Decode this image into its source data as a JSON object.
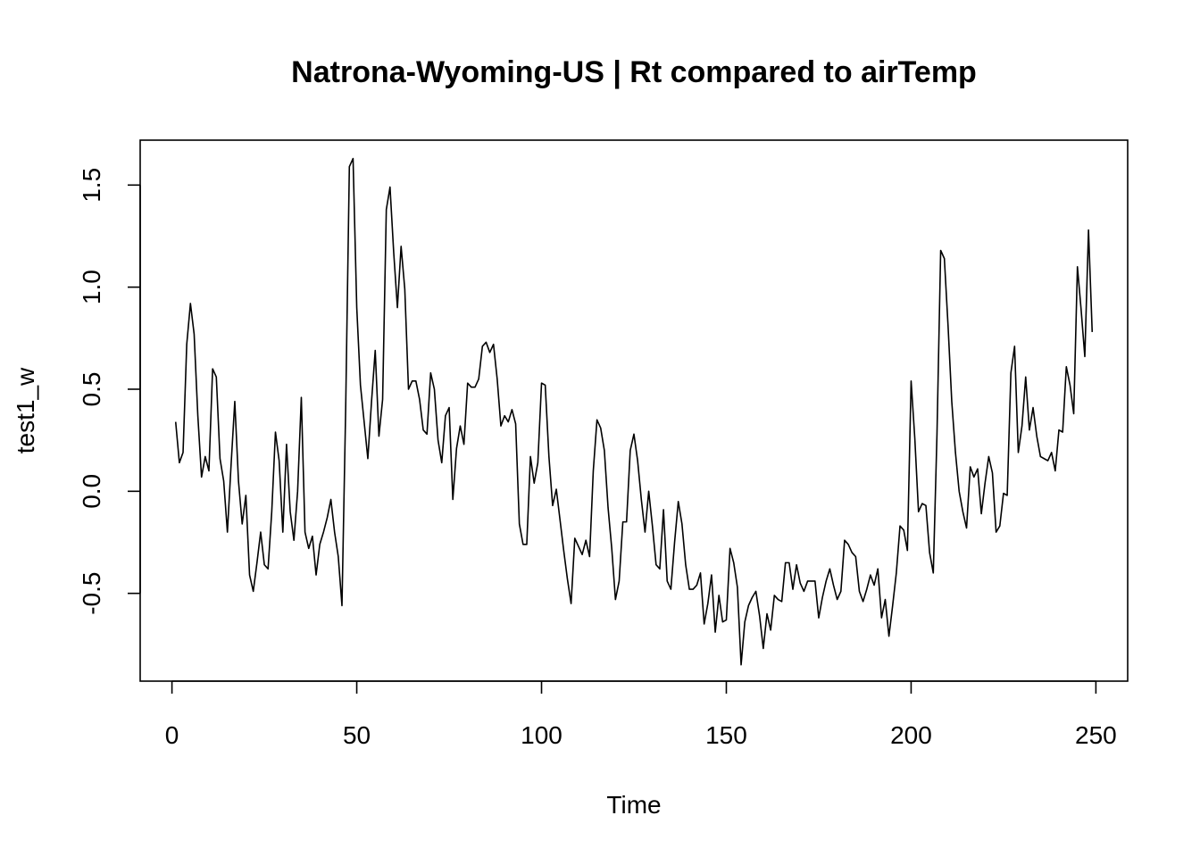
{
  "chart_data": {
    "type": "line",
    "title": "Natrona-Wyoming-US | Rt compared to airTemp",
    "xlabel": "Time",
    "ylabel": "test1_w",
    "xlim": [
      -8.6,
      258.6
    ],
    "ylim": [
      -0.93,
      1.72
    ],
    "xticks": [
      0,
      50,
      100,
      150,
      200,
      250
    ],
    "yticks": [
      -0.5,
      0.0,
      0.5,
      1.0,
      1.5
    ],
    "xtick_labels": [
      "0",
      "50",
      "100",
      "150",
      "200",
      "250"
    ],
    "ytick_labels": [
      "-0.5",
      "0.0",
      "0.5",
      "1.0",
      "1.5"
    ],
    "grid": false,
    "legend": "none",
    "series": [
      {
        "x_start": 1,
        "values": [
          0.34,
          0.14,
          0.19,
          0.72,
          0.92,
          0.77,
          0.37,
          0.07,
          0.17,
          0.1,
          0.6,
          0.56,
          0.16,
          0.05,
          -0.2,
          0.13,
          0.44,
          0.05,
          -0.16,
          -0.02,
          -0.41,
          -0.49,
          -0.35,
          -0.2,
          -0.36,
          -0.38,
          -0.1,
          0.29,
          0.15,
          -0.2,
          0.23,
          -0.1,
          -0.24,
          0.0,
          0.46,
          -0.2,
          -0.28,
          -0.22,
          -0.41,
          -0.26,
          -0.2,
          -0.13,
          -0.04,
          -0.2,
          -0.32,
          -0.56,
          0.4,
          1.59,
          1.63,
          0.9,
          0.52,
          0.34,
          0.16,
          0.44,
          0.69,
          0.27,
          0.45,
          1.38,
          1.49,
          1.17,
          0.9,
          1.2,
          0.99,
          0.5,
          0.54,
          0.54,
          0.45,
          0.3,
          0.28,
          0.58,
          0.5,
          0.25,
          0.14,
          0.37,
          0.41,
          -0.04,
          0.21,
          0.32,
          0.23,
          0.53,
          0.51,
          0.51,
          0.55,
          0.71,
          0.73,
          0.68,
          0.72,
          0.55,
          0.32,
          0.37,
          0.34,
          0.4,
          0.33,
          -0.16,
          -0.26,
          -0.26,
          0.17,
          0.04,
          0.14,
          0.53,
          0.52,
          0.17,
          -0.07,
          0.01,
          -0.14,
          -0.29,
          -0.43,
          -0.55,
          -0.23,
          -0.27,
          -0.31,
          -0.24,
          -0.32,
          0.1,
          0.35,
          0.31,
          0.2,
          -0.08,
          -0.28,
          -0.53,
          -0.44,
          -0.15,
          -0.15,
          0.2,
          0.28,
          0.15,
          -0.04,
          -0.2,
          0.0,
          -0.17,
          -0.36,
          -0.38,
          -0.09,
          -0.44,
          -0.48,
          -0.25,
          -0.05,
          -0.16,
          -0.36,
          -0.48,
          -0.48,
          -0.46,
          -0.4,
          -0.65,
          -0.55,
          -0.41,
          -0.69,
          -0.51,
          -0.64,
          -0.63,
          -0.28,
          -0.35,
          -0.47,
          -0.85,
          -0.64,
          -0.56,
          -0.52,
          -0.49,
          -0.61,
          -0.77,
          -0.6,
          -0.68,
          -0.51,
          -0.53,
          -0.54,
          -0.35,
          -0.35,
          -0.48,
          -0.36,
          -0.45,
          -0.49,
          -0.44,
          -0.44,
          -0.44,
          -0.62,
          -0.52,
          -0.44,
          -0.38,
          -0.46,
          -0.53,
          -0.49,
          -0.24,
          -0.26,
          -0.3,
          -0.32,
          -0.49,
          -0.54,
          -0.48,
          -0.41,
          -0.46,
          -0.38,
          -0.62,
          -0.53,
          -0.71,
          -0.56,
          -0.4,
          -0.17,
          -0.19,
          -0.29,
          0.54,
          0.26,
          -0.1,
          -0.06,
          -0.07,
          -0.3,
          -0.4,
          0.28,
          1.18,
          1.14,
          0.81,
          0.44,
          0.19,
          0.0,
          -0.1,
          -0.18,
          0.12,
          0.07,
          0.11,
          -0.11,
          0.04,
          0.17,
          0.09,
          -0.2,
          -0.17,
          -0.01,
          -0.02,
          0.58,
          0.71,
          0.19,
          0.32,
          0.56,
          0.3,
          0.41,
          0.27,
          0.17,
          0.16,
          0.15,
          0.19,
          0.1,
          0.3,
          0.29,
          0.61,
          0.52,
          0.38,
          1.1,
          0.89,
          0.66,
          1.28,
          0.78
        ]
      }
    ]
  }
}
